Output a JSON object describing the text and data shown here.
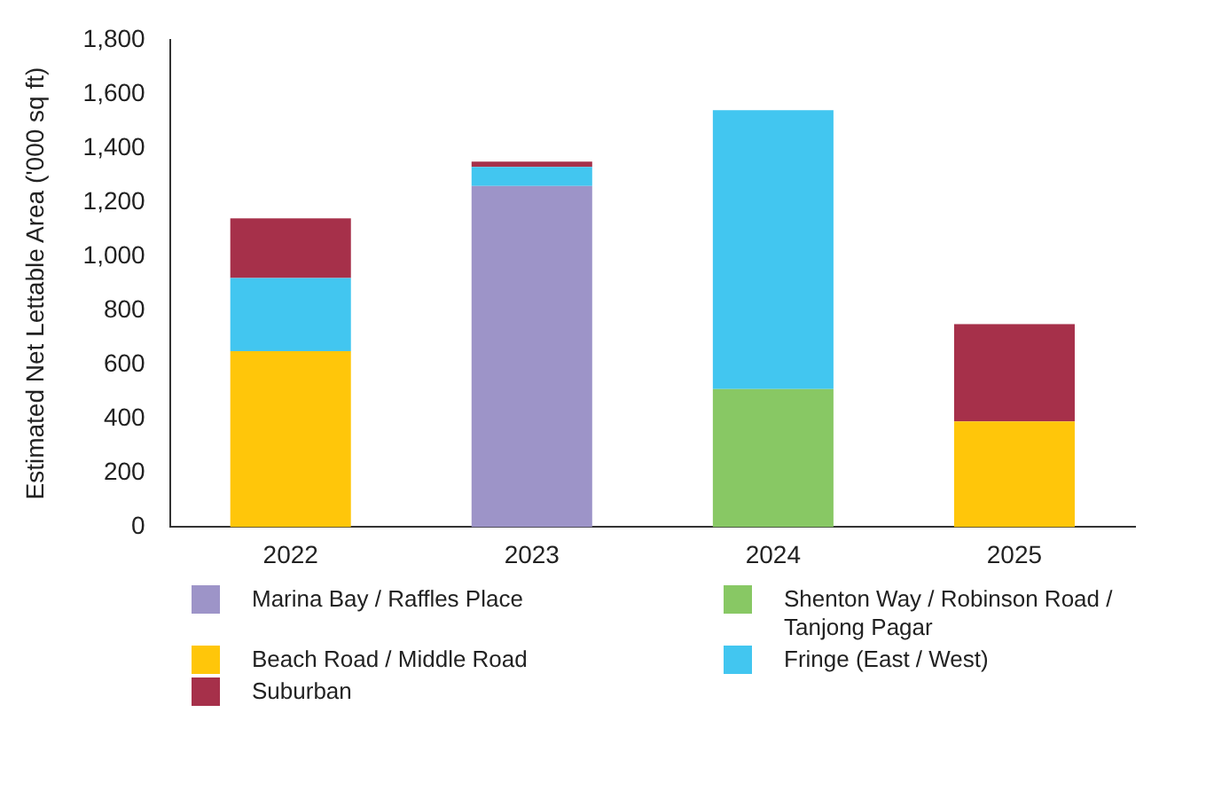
{
  "chart_data": {
    "type": "bar",
    "stacked": true,
    "ylabel": "Estimated Net Lettable Area ('000 sq ft)",
    "categories": [
      "2022",
      "2023",
      "2024",
      "2025"
    ],
    "series": [
      {
        "name": "Marina Bay / Raffles Place",
        "color": "#9d94c8",
        "values": [
          null,
          1260,
          null,
          null
        ]
      },
      {
        "name": "Shenton Way / Robinson Road / Tanjong Pagar",
        "color": "#88c864",
        "values": [
          null,
          null,
          510,
          null
        ]
      },
      {
        "name": "Beach Road / Middle Road",
        "color": "#ffc60a",
        "values": [
          650,
          null,
          null,
          390
        ]
      },
      {
        "name": "Fringe (East / West)",
        "color": "#42c6f0",
        "values": [
          270,
          70,
          1030,
          null
        ]
      },
      {
        "name": "Suburban",
        "color": "#a6304a",
        "values": [
          220,
          20,
          null,
          360
        ]
      }
    ],
    "ylim": [
      0,
      1800
    ],
    "yticks": [
      0,
      200,
      400,
      600,
      800,
      {
        "value": 1000,
        "label": "1,000"
      },
      {
        "value": 1200,
        "label": "1,200"
      },
      {
        "value": 1400,
        "label": "1,400"
      },
      {
        "value": 1600,
        "label": "1,600"
      },
      {
        "value": 1800,
        "label": "1,800"
      }
    ],
    "grid": false,
    "legend": "bottom"
  }
}
